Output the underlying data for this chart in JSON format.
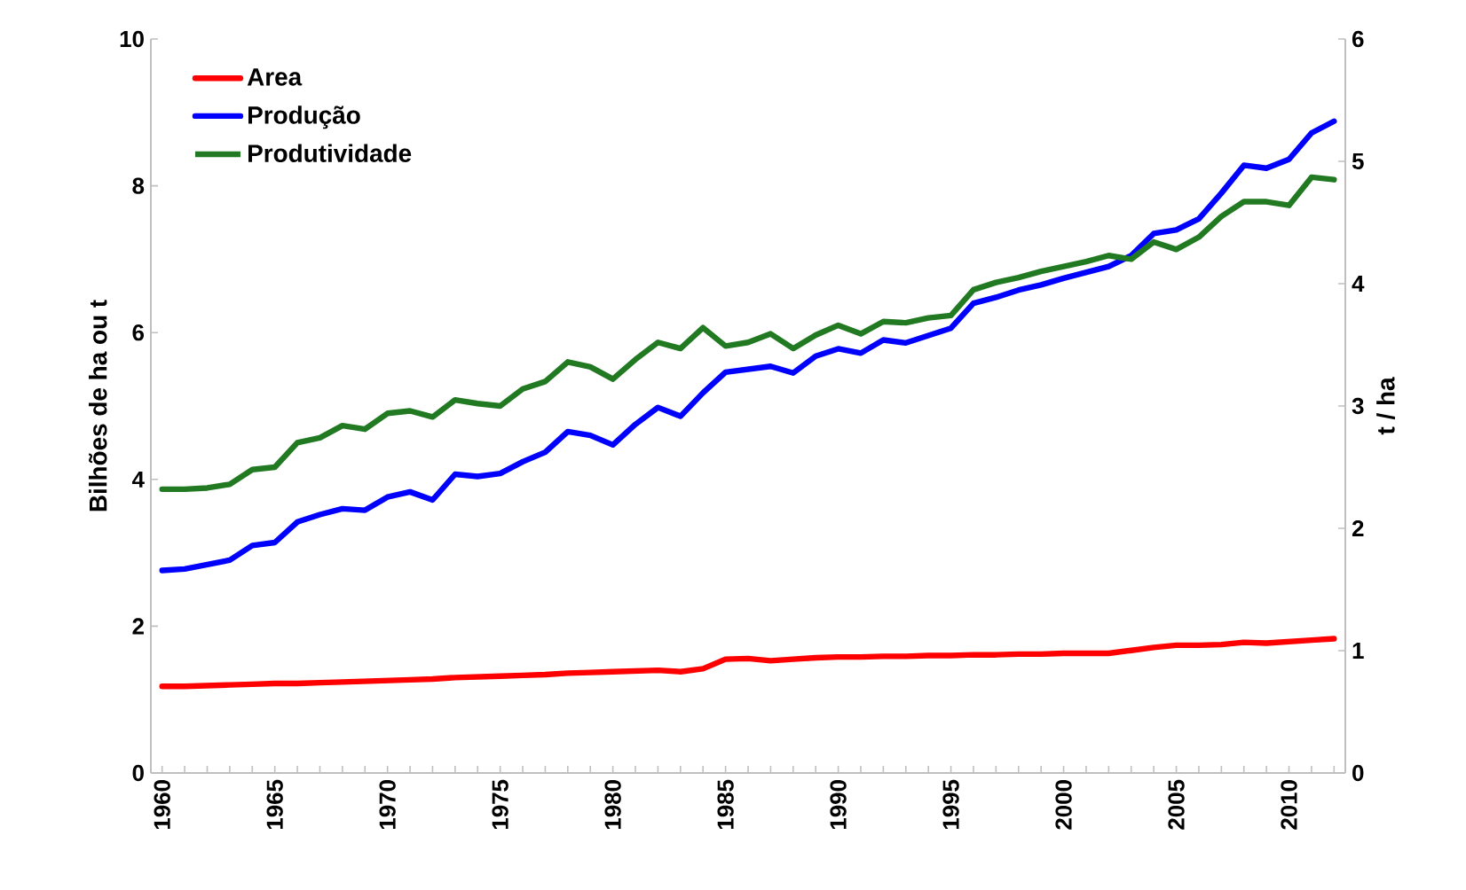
{
  "chart_data": {
    "type": "line",
    "x": [
      1960,
      1961,
      1962,
      1963,
      1964,
      1965,
      1966,
      1967,
      1968,
      1969,
      1970,
      1971,
      1972,
      1973,
      1974,
      1975,
      1976,
      1977,
      1978,
      1979,
      1980,
      1981,
      1982,
      1983,
      1984,
      1985,
      1986,
      1987,
      1988,
      1989,
      1990,
      1991,
      1992,
      1993,
      1994,
      1995,
      1996,
      1997,
      1998,
      1999,
      2000,
      2001,
      2002,
      2003,
      2004,
      2005,
      2006,
      2007,
      2008,
      2009,
      2010,
      2011,
      2012
    ],
    "series": [
      {
        "name": "Area",
        "color": "#ff0000",
        "values": [
          1.18,
          1.18,
          1.19,
          1.2,
          1.21,
          1.22,
          1.22,
          1.23,
          1.24,
          1.25,
          1.26,
          1.27,
          1.28,
          1.3,
          1.31,
          1.32,
          1.33,
          1.34,
          1.36,
          1.37,
          1.38,
          1.39,
          1.4,
          1.38,
          1.42,
          1.55,
          1.56,
          1.53,
          1.55,
          1.57,
          1.58,
          1.58,
          1.59,
          1.59,
          1.6,
          1.6,
          1.61,
          1.61,
          1.62,
          1.62,
          1.63,
          1.63,
          1.63,
          1.67,
          1.71,
          1.74,
          1.74,
          1.75,
          1.78,
          1.77,
          1.79,
          1.81,
          1.83
        ]
      },
      {
        "name": "Produção",
        "color": "#0000ff",
        "values": [
          2.76,
          2.78,
          2.84,
          2.9,
          3.1,
          3.14,
          3.42,
          3.52,
          3.6,
          3.58,
          3.76,
          3.83,
          3.72,
          4.07,
          4.04,
          4.08,
          4.24,
          4.37,
          4.65,
          4.6,
          4.47,
          4.75,
          4.98,
          4.86,
          5.18,
          5.46,
          5.5,
          5.54,
          5.45,
          5.68,
          5.78,
          5.72,
          5.9,
          5.86,
          5.96,
          6.06,
          6.4,
          6.48,
          6.58,
          6.65,
          6.74,
          6.82,
          6.9,
          7.05,
          7.35,
          7.4,
          7.55,
          7.9,
          8.28,
          8.24,
          8.36,
          8.72,
          8.88
        ]
      },
      {
        "name": "Produtividade",
        "color": "#217a21",
        "axis": "y2",
        "values": [
          2.32,
          2.32,
          2.33,
          2.36,
          2.48,
          2.5,
          2.7,
          2.74,
          2.84,
          2.81,
          2.94,
          2.96,
          2.91,
          3.05,
          3.02,
          3.0,
          3.14,
          3.2,
          3.36,
          3.32,
          3.22,
          3.38,
          3.52,
          3.47,
          3.64,
          3.49,
          3.52,
          3.59,
          3.47,
          3.58,
          3.66,
          3.59,
          3.69,
          3.68,
          3.72,
          3.74,
          3.95,
          4.01,
          4.05,
          4.1,
          4.14,
          4.18,
          4.23,
          4.2,
          4.34,
          4.28,
          4.38,
          4.55,
          4.67,
          4.67,
          4.64,
          4.87,
          4.85
        ]
      }
    ],
    "ylabel": "Bilhões de ha ou t",
    "y2label": "t / ha",
    "xlim": [
      1959.5,
      2012.5
    ],
    "xticks": [
      1960,
      {
        "value": 1961,
        "label": null
      },
      {
        "value": 1962,
        "label": null
      },
      {
        "value": 1963,
        "label": null
      },
      {
        "value": 1964,
        "label": null
      },
      1965,
      {
        "value": 1966,
        "label": null
      },
      {
        "value": 1967,
        "label": null
      },
      {
        "value": 1968,
        "label": null
      },
      {
        "value": 1969,
        "label": null
      },
      1970,
      {
        "value": 1971,
        "label": null
      },
      {
        "value": 1972,
        "label": null
      },
      {
        "value": 1973,
        "label": null
      },
      {
        "value": 1974,
        "label": null
      },
      1975,
      {
        "value": 1976,
        "label": null
      },
      {
        "value": 1977,
        "label": null
      },
      {
        "value": 1978,
        "label": null
      },
      {
        "value": 1979,
        "label": null
      },
      1980,
      {
        "value": 1981,
        "label": null
      },
      {
        "value": 1982,
        "label": null
      },
      {
        "value": 1983,
        "label": null
      },
      {
        "value": 1984,
        "label": null
      },
      1985,
      {
        "value": 1986,
        "label": null
      },
      {
        "value": 1987,
        "label": null
      },
      {
        "value": 1988,
        "label": null
      },
      {
        "value": 1989,
        "label": null
      },
      1990,
      {
        "value": 1991,
        "label": null
      },
      {
        "value": 1992,
        "label": null
      },
      {
        "value": 1993,
        "label": null
      },
      {
        "value": 1994,
        "label": null
      },
      1995,
      {
        "value": 1996,
        "label": null
      },
      {
        "value": 1997,
        "label": null
      },
      {
        "value": 1998,
        "label": null
      },
      {
        "value": 1999,
        "label": null
      },
      2000,
      {
        "value": 2001,
        "label": null
      },
      {
        "value": 2002,
        "label": null
      },
      {
        "value": 2003,
        "label": null
      },
      {
        "value": 2004,
        "label": null
      },
      2005,
      {
        "value": 2006,
        "label": null
      },
      {
        "value": 2007,
        "label": null
      },
      {
        "value": 2008,
        "label": null
      },
      {
        "value": 2009,
        "label": null
      },
      2010,
      {
        "value": 2011,
        "label": null
      },
      {
        "value": 2012,
        "label": null
      }
    ],
    "ylim": [
      0,
      10
    ],
    "yticks": [
      0,
      2,
      4,
      6,
      8,
      10
    ],
    "y2lim": [
      0,
      6
    ],
    "y2ticks": [
      0,
      1,
      2,
      3,
      4,
      5,
      6
    ],
    "legend": "top left",
    "grid": false,
    "marker": "none",
    "line_style": "solid"
  }
}
